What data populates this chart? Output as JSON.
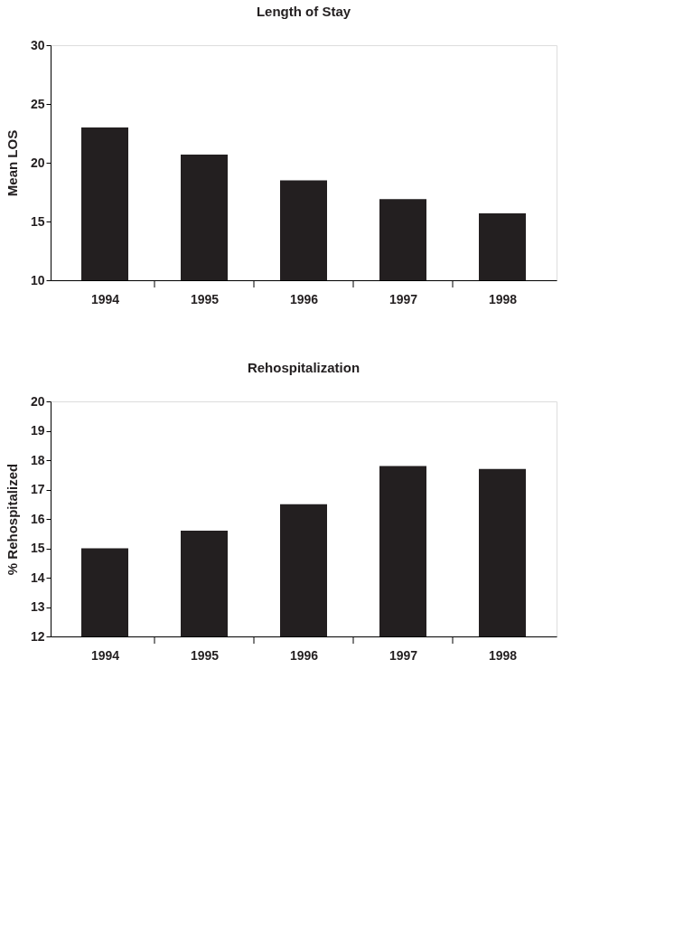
{
  "chart_data": [
    {
      "type": "bar",
      "title": "Length of Stay",
      "ylabel": "Mean LOS",
      "categories": [
        "1994",
        "1995",
        "1996",
        "1997",
        "1998"
      ],
      "values": [
        23.0,
        20.7,
        18.5,
        16.9,
        15.7
      ],
      "color": "#231f20",
      "ylim": [
        10,
        30
      ],
      "yticks": [
        10,
        15,
        20,
        25,
        30
      ],
      "grid": false
    },
    {
      "type": "bar",
      "title": "Rehospitalization",
      "ylabel": "% Rehospitalized",
      "categories": [
        "1994",
        "1995",
        "1996",
        "1997",
        "1998"
      ],
      "values": [
        15.0,
        15.6,
        16.5,
        17.8,
        17.7
      ],
      "color": "#231f20",
      "ylim": [
        12,
        20
      ],
      "yticks": [
        12,
        13,
        14,
        15,
        16,
        17,
        18,
        19,
        20
      ],
      "grid": false
    }
  ]
}
